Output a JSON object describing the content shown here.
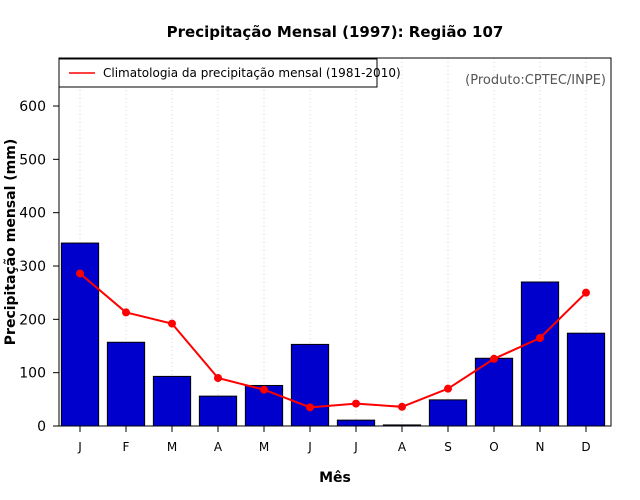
{
  "chart_data": {
    "type": "bar",
    "title": "Precipitação Mensal (1997): Região 107",
    "xlabel": "Mês",
    "ylabel": "Precipitação mensal (mm)",
    "ylim": [
      0,
      690
    ],
    "yticks": [
      0,
      100,
      200,
      300,
      400,
      500,
      600
    ],
    "categories": [
      "J",
      "F",
      "M",
      "A",
      "M",
      "J",
      "J",
      "A",
      "S",
      "O",
      "N",
      "D"
    ],
    "series": [
      {
        "name": "Precipitação mensal 1997",
        "type": "bar",
        "color": "#0000cd",
        "values": [
          343,
          157,
          93,
          56,
          76,
          153,
          11,
          2,
          49,
          127,
          270,
          174
        ]
      },
      {
        "name": "Climatologia da precipitação mensal (1981-2010)",
        "type": "line",
        "color": "#ff0000",
        "values": [
          286,
          213,
          192,
          90,
          68,
          35,
          42,
          36,
          70,
          126,
          165,
          250
        ]
      }
    ],
    "legend": {
      "position": "top-left",
      "entries": [
        "Climatologia da precipitação mensal (1981-2010)"
      ]
    },
    "annotation": "(Produto:CPTEC/INPE)",
    "grid": "vertical dotted"
  }
}
